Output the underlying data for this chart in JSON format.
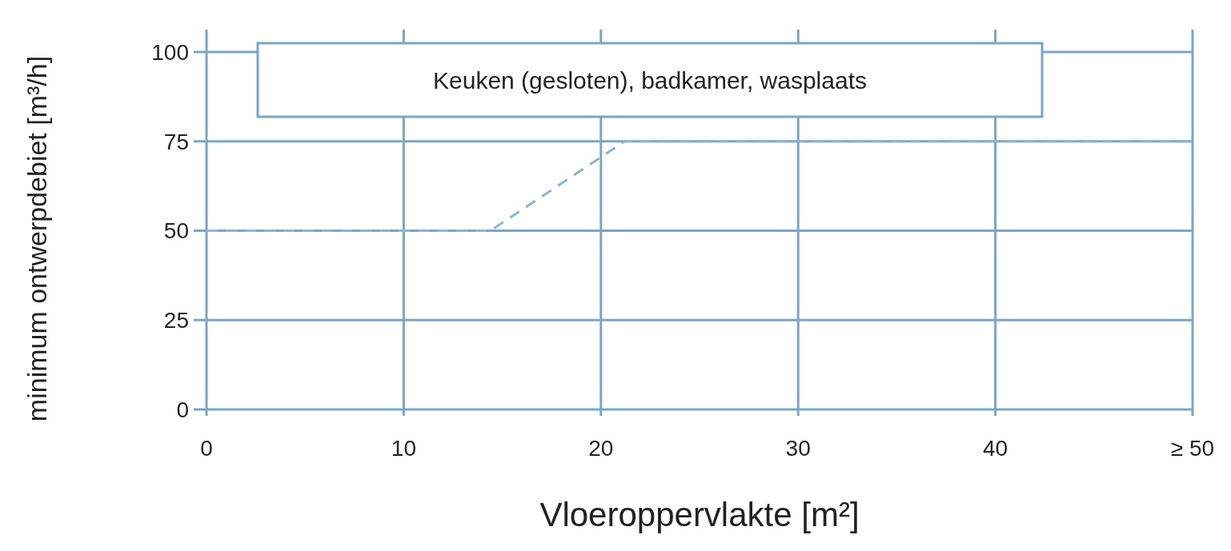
{
  "chart_data": {
    "type": "line",
    "title": "Keuken (gesloten), badkamer, wasplaats",
    "xlabel": "Vloeroppervlakte [m²]",
    "ylabel": "minimum ontwerpdebiet [m³/h]",
    "x": [
      0,
      14.4,
      21.2,
      50
    ],
    "series": [
      {
        "color": "#8fb3d3",
        "values": [
          50,
          50,
          75,
          75
        ]
      }
    ],
    "xlim": [
      0,
      50
    ],
    "ylim": [
      0,
      100
    ],
    "xticks": [
      0,
      10,
      20,
      30,
      40,
      {
        "value": 50,
        "label": "≥ 50"
      }
    ],
    "yticks": [
      0,
      25,
      50,
      75,
      100
    ],
    "grid": true,
    "line_style": "dashed",
    "marker": "none"
  }
}
